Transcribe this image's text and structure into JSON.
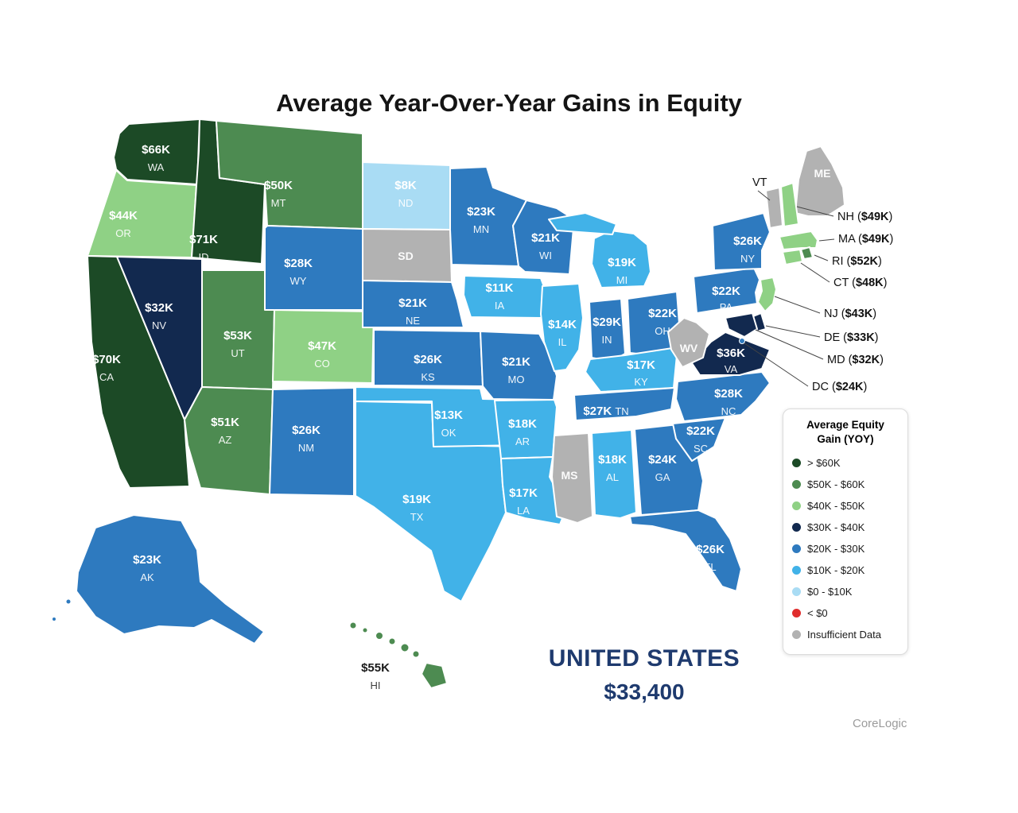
{
  "title": "Average Year-Over-Year Gains in Equity",
  "attribution": "CoreLogic",
  "palette": {
    "gt60": "#1c4a26",
    "b50_60": "#4d8b51",
    "b40_50": "#8fd185",
    "b30_40": "#12294f",
    "b20_30": "#2e7abf",
    "b10_20": "#41b2e8",
    "b0_10": "#a9dcf4",
    "lt0": "#e02d2d",
    "insufficient": "#b2b2b2"
  },
  "legend": {
    "title_line1": "Average Equity",
    "title_line2": "Gain (YOY)",
    "items": [
      {
        "label": "> $60K",
        "bucket": "gt60"
      },
      {
        "label": "$50K - $60K",
        "bucket": "b50_60"
      },
      {
        "label": "$40K - $50K",
        "bucket": "b40_50"
      },
      {
        "label": "$30K - $40K",
        "bucket": "b30_40"
      },
      {
        "label": "$20K - $30K",
        "bucket": "b20_30"
      },
      {
        "label": "$10K - $20K",
        "bucket": "b10_20"
      },
      {
        "label": "$0 - $10K",
        "bucket": "b0_10"
      },
      {
        "label": "< $0",
        "bucket": "lt0"
      },
      {
        "label": "Insufficient Data",
        "bucket": "insufficient"
      }
    ]
  },
  "chart_data": {
    "type": "choropleth",
    "region": "United States",
    "metric": "Average year-over-year equity gain per state (USD thousands)",
    "legend_position": "right",
    "national": {
      "label": "UNITED STATES",
      "value": "$33,400"
    },
    "states": [
      {
        "code": "WA",
        "label": "$66K",
        "value_k": 66,
        "bucket": "gt60"
      },
      {
        "code": "OR",
        "label": "$44K",
        "value_k": 44,
        "bucket": "b40_50"
      },
      {
        "code": "CA",
        "label": "$70K",
        "value_k": 70,
        "bucket": "gt60"
      },
      {
        "code": "ID",
        "label": "$71K",
        "value_k": 71,
        "bucket": "gt60"
      },
      {
        "code": "NV",
        "label": "$32K",
        "value_k": 32,
        "bucket": "b30_40"
      },
      {
        "code": "MT",
        "label": "$50K",
        "value_k": 50,
        "bucket": "b50_60"
      },
      {
        "code": "ND",
        "label": "$8K",
        "value_k": 8,
        "bucket": "b0_10"
      },
      {
        "code": "SD",
        "label": "",
        "value_k": null,
        "bucket": "insufficient"
      },
      {
        "code": "WY",
        "label": "$28K",
        "value_k": 28,
        "bucket": "b20_30"
      },
      {
        "code": "UT",
        "label": "$53K",
        "value_k": 53,
        "bucket": "b50_60"
      },
      {
        "code": "CO",
        "label": "$47K",
        "value_k": 47,
        "bucket": "b40_50"
      },
      {
        "code": "AZ",
        "label": "$51K",
        "value_k": 51,
        "bucket": "b50_60"
      },
      {
        "code": "NM",
        "label": "$26K",
        "value_k": 26,
        "bucket": "b20_30"
      },
      {
        "code": "TX",
        "label": "$19K",
        "value_k": 19,
        "bucket": "b10_20"
      },
      {
        "code": "OK",
        "label": "$13K",
        "value_k": 13,
        "bucket": "b10_20"
      },
      {
        "code": "KS",
        "label": "$26K",
        "value_k": 26,
        "bucket": "b20_30"
      },
      {
        "code": "NE",
        "label": "$21K",
        "value_k": 21,
        "bucket": "b20_30"
      },
      {
        "code": "MN",
        "label": "$23K",
        "value_k": 23,
        "bucket": "b20_30"
      },
      {
        "code": "IA",
        "label": "$11K",
        "value_k": 11,
        "bucket": "b10_20"
      },
      {
        "code": "MO",
        "label": "$21K",
        "value_k": 21,
        "bucket": "b20_30"
      },
      {
        "code": "AR",
        "label": "$18K",
        "value_k": 18,
        "bucket": "b10_20"
      },
      {
        "code": "LA",
        "label": "$17K",
        "value_k": 17,
        "bucket": "b10_20"
      },
      {
        "code": "WI",
        "label": "$21K",
        "value_k": 21,
        "bucket": "b20_30"
      },
      {
        "code": "IL",
        "label": "$14K",
        "value_k": 14,
        "bucket": "b10_20"
      },
      {
        "code": "MI",
        "label": "$19K",
        "value_k": 19,
        "bucket": "b10_20"
      },
      {
        "code": "IN",
        "label": "$29K",
        "value_k": 29,
        "bucket": "b20_30"
      },
      {
        "code": "OH",
        "label": "$22K",
        "value_k": 22,
        "bucket": "b20_30"
      },
      {
        "code": "KY",
        "label": "$17K",
        "value_k": 17,
        "bucket": "b10_20"
      },
      {
        "code": "TN",
        "label": "$27K",
        "value_k": 27,
        "bucket": "b20_30"
      },
      {
        "code": "MS",
        "label": "",
        "value_k": null,
        "bucket": "insufficient"
      },
      {
        "code": "AL",
        "label": "$18K",
        "value_k": 18,
        "bucket": "b10_20"
      },
      {
        "code": "GA",
        "label": "$24K",
        "value_k": 24,
        "bucket": "b20_30"
      },
      {
        "code": "FL",
        "label": "$26K",
        "value_k": 26,
        "bucket": "b20_30"
      },
      {
        "code": "SC",
        "label": "$22K",
        "value_k": 22,
        "bucket": "b20_30"
      },
      {
        "code": "NC",
        "label": "$28K",
        "value_k": 28,
        "bucket": "b20_30"
      },
      {
        "code": "VA",
        "label": "$36K",
        "value_k": 36,
        "bucket": "b30_40"
      },
      {
        "code": "WV",
        "label": "",
        "value_k": null,
        "bucket": "insufficient"
      },
      {
        "code": "PA",
        "label": "$22K",
        "value_k": 22,
        "bucket": "b20_30"
      },
      {
        "code": "NY",
        "label": "$26K",
        "value_k": 26,
        "bucket": "b20_30"
      },
      {
        "code": "ME",
        "label": "",
        "value_k": null,
        "bucket": "insufficient"
      },
      {
        "code": "VT",
        "label": "",
        "value_k": null,
        "bucket": "insufficient"
      },
      {
        "code": "NH",
        "label": "$49K",
        "value_k": 49,
        "bucket": "b40_50"
      },
      {
        "code": "MA",
        "label": "$49K",
        "value_k": 49,
        "bucket": "b40_50"
      },
      {
        "code": "RI",
        "label": "$52K",
        "value_k": 52,
        "bucket": "b50_60"
      },
      {
        "code": "CT",
        "label": "$48K",
        "value_k": 48,
        "bucket": "b40_50"
      },
      {
        "code": "NJ",
        "label": "$43K",
        "value_k": 43,
        "bucket": "b40_50"
      },
      {
        "code": "DE",
        "label": "$33K",
        "value_k": 33,
        "bucket": "b30_40"
      },
      {
        "code": "MD",
        "label": "$32K",
        "value_k": 32,
        "bucket": "b30_40"
      },
      {
        "code": "DC",
        "label": "$24K",
        "value_k": 24,
        "bucket": "b20_30"
      },
      {
        "code": "AK",
        "label": "$23K",
        "value_k": 23,
        "bucket": "b20_30"
      },
      {
        "code": "HI",
        "label": "$55K",
        "value_k": 55,
        "bucket": "b50_60"
      }
    ],
    "callouts": [
      {
        "code": "VT",
        "value": null
      },
      {
        "code": "NH",
        "value": "$49K"
      },
      {
        "code": "MA",
        "value": "$49K"
      },
      {
        "code": "RI",
        "value": "$52K"
      },
      {
        "code": "CT",
        "value": "$48K"
      },
      {
        "code": "NJ",
        "value": "$43K"
      },
      {
        "code": "DE",
        "value": "$33K"
      },
      {
        "code": "MD",
        "value": "$32K"
      },
      {
        "code": "DC",
        "value": "$24K"
      }
    ]
  }
}
